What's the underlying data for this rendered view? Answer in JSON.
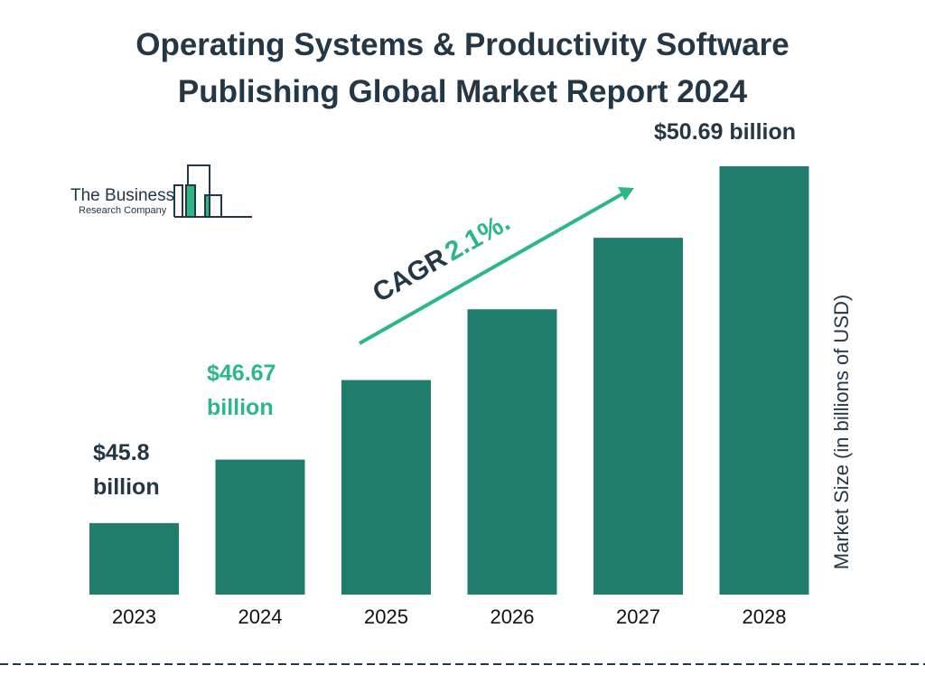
{
  "title_line1": "Operating Systems & Productivity Software",
  "title_line2": "Publishing Global Market Report 2024",
  "logo": {
    "line1": "The Business",
    "line2": "Research Company"
  },
  "colors": {
    "bar": "#217D6B",
    "accent": "#2DB784",
    "text": "#243746"
  },
  "chart_data": {
    "type": "bar",
    "categories": [
      "2023",
      "2024",
      "2025",
      "2026",
      "2027",
      "2028"
    ],
    "values": [
      45.8,
      46.67,
      47.76,
      48.73,
      49.71,
      50.69
    ],
    "ylim": [
      44.82,
      50.69
    ],
    "ylabel": "Market Size (in billions of USD)",
    "grid": false,
    "data_labels": [
      {
        "category": "2023",
        "line1": "$45.8",
        "line2": "billion"
      },
      {
        "category": "2024",
        "line1": "$46.67",
        "line2": "billion"
      },
      {
        "category": "2028",
        "text": "$50.69 billion"
      }
    ],
    "annotation": {
      "label": "CAGR",
      "value": "2.1%."
    }
  }
}
